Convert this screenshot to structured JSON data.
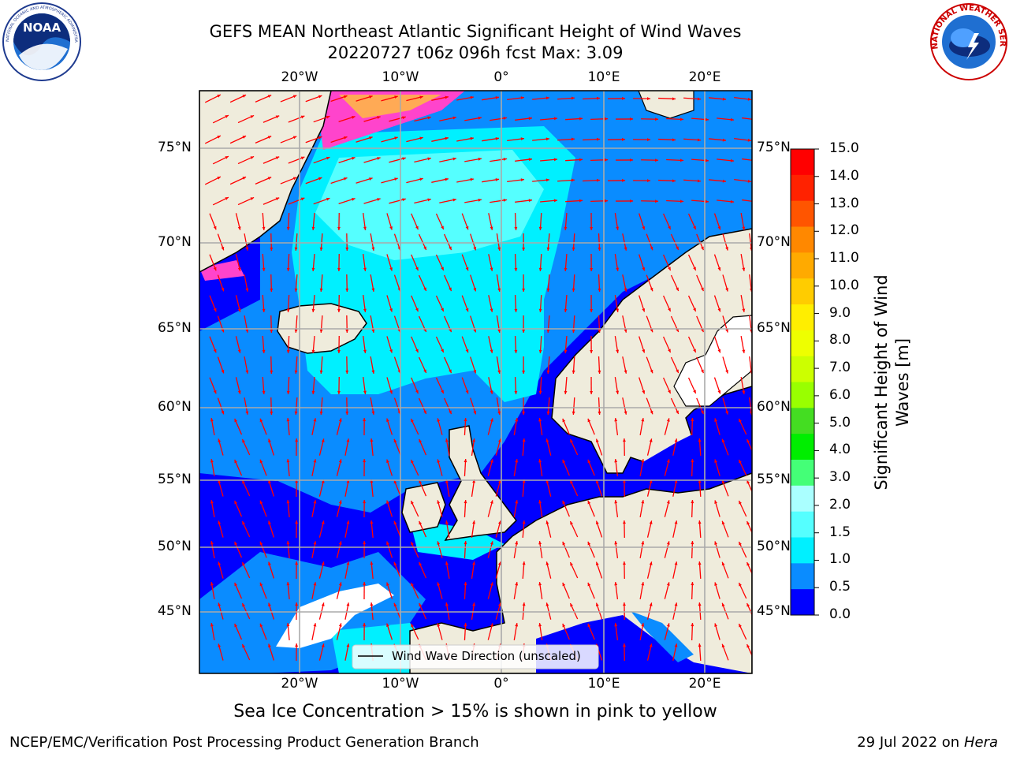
{
  "title": {
    "line1": "GEFS MEAN Northeast Atlantic Significant Height of Wind Waves",
    "line2": "20220727 t06z 096h fcst   Max: 3.09"
  },
  "logos": {
    "noaa_text": "NOAA",
    "noaa_ring": "NATIONAL OCEANIC AND ATMOSPHERIC ADMINISTRATION · U.S. DEPARTMENT OF COMMERCE",
    "nws_ring": "NATIONAL WEATHER SERVICE"
  },
  "map": {
    "lon_labels": [
      "20°W",
      "10°W",
      "0°",
      "10°E",
      "20°E"
    ],
    "lat_labels": [
      "75°N",
      "70°N",
      "65°N",
      "60°N",
      "55°N",
      "50°N",
      "45°N"
    ],
    "legend_label": "Wind Wave Direction (unscaled)",
    "arrow_color": "#ff0000",
    "land_color": "#efecdc"
  },
  "colorbar": {
    "ticks": [
      "15.0",
      "14.0",
      "13.0",
      "12.0",
      "11.0",
      "10.0",
      "9.0",
      "8.0",
      "7.0",
      "6.0",
      "5.0",
      "4.0",
      "3.0",
      "2.0",
      "1.5",
      "1.0",
      "0.5",
      "0.0"
    ],
    "colors": [
      "#ff0000",
      "#ff2200",
      "#ff5500",
      "#ff8800",
      "#ffaa00",
      "#ffcc00",
      "#ffee00",
      "#eeff00",
      "#ccff00",
      "#99ff00",
      "#44dd22",
      "#00ee00",
      "#44ff77",
      "#aaffff",
      "#55ffff",
      "#00f0ff",
      "#0a8cff",
      "#0000ff"
    ],
    "title_line1": "Significant Height of Wind",
    "title_line2": "Waves [m]"
  },
  "caption": "Sea Ice Concentration > 15% is shown in pink to yellow",
  "footer": {
    "left": "NCEP/EMC/Verification Post Processing Product Generation Branch",
    "right_date": "29 Jul 2022 on",
    "right_machine": "Hera"
  }
}
